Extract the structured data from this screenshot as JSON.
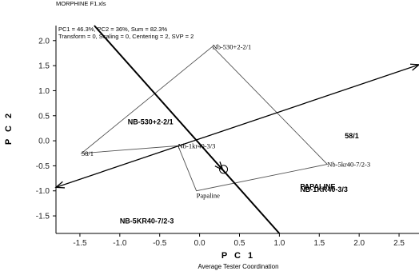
{
  "header": {
    "file_name": "MORPHINE F1.xls",
    "stats_line": "PC1 = 46.3%, PC2 = 36%, Sum = 82.3%",
    "params_line": "Transform = 0, Scaling = 0, Centering = 2, SVP = 2"
  },
  "chart_data": {
    "type": "scatter",
    "xlabel": "P C 1",
    "ylabel": "P C 2",
    "subtitle": "Average Tester Coordination",
    "xlim": [
      -1.8,
      2.75
    ],
    "ylim": [
      -1.85,
      2.3
    ],
    "xticks": [
      -1.5,
      -1.0,
      -0.5,
      0.0,
      0.5,
      1.0,
      1.5,
      2.0,
      2.5
    ],
    "yticks": [
      -1.5,
      -1.0,
      -0.5,
      0.0,
      0.5,
      1.0,
      1.5,
      2.0
    ],
    "genotypes": [
      {
        "name": "Nb-530+2-2/1",
        "x": 0.16,
        "y": 1.88
      },
      {
        "name": "58/1",
        "x": -1.48,
        "y": -0.25
      },
      {
        "name": "Nb-1kr40-3/3",
        "x": -0.27,
        "y": -0.1
      },
      {
        "name": "Papaline",
        "x": -0.04,
        "y": -1.0
      },
      {
        "name": "Nb-5kr40-7/2-3",
        "x": 1.6,
        "y": -0.47
      }
    ],
    "hull_order": [
      "Nb-530+2-2/1",
      "Nb-5kr40-7/2-3",
      "Papaline",
      "Nb-1kr40-3/3",
      "58/1"
    ],
    "testers": [
      {
        "name": "NB-530+2-2/1",
        "x": -0.9,
        "y": 0.38
      },
      {
        "name": "58/1",
        "x": 1.82,
        "y": 0.1
      },
      {
        "name": "PAPALINE",
        "x": 1.26,
        "y": -0.92
      },
      {
        "name": "NB-1KR40-3/3",
        "x": 1.26,
        "y": -0.97
      },
      {
        "name": "NB-5KR40-7/2-3",
        "x": -1.0,
        "y": -1.6
      }
    ],
    "ate_axis": {
      "from": [
        -1.8,
        -0.93
      ],
      "to": [
        2.75,
        1.52
      ]
    },
    "ate_ordinate": {
      "from": [
        -1.32,
        2.3
      ],
      "to": [
        1.0,
        -1.85
      ]
    },
    "average_tester_circle": {
      "x": 0.3,
      "y": -0.57
    }
  }
}
